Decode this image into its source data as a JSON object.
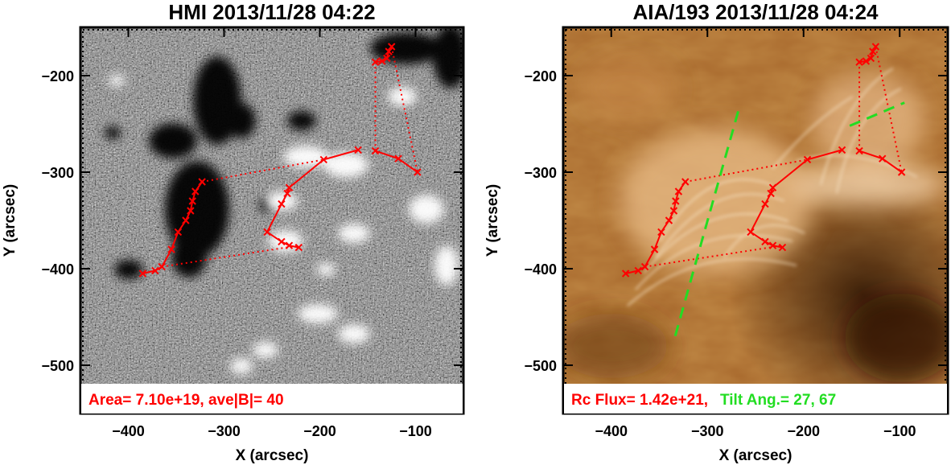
{
  "panels": [
    {
      "title": "HMI 2013/11/28 04:22",
      "caption_parts": [
        {
          "text": "Area= 7.10e+19, ave|B|=  40",
          "color": "#ff0000"
        }
      ],
      "image_style": "magnetogram-grayscale",
      "shows_green_dashed_lines": false
    },
    {
      "title": "AIA/193 2013/11/28 04:24",
      "caption_parts": [
        {
          "text": "Rc Flux= 1.42e+21,",
          "color": "#ff0000"
        },
        {
          "text": "Tilt Ang.=  27, 67",
          "color": "#22dd22"
        }
      ],
      "image_style": "euv-copper",
      "shows_green_dashed_lines": true
    }
  ],
  "axes": {
    "xlabel": "X (arcsec)",
    "ylabel": "Y (arcsec)",
    "xlim": [
      -450,
      -50
    ],
    "ylim": [
      -550,
      -150
    ],
    "xticks": [
      -400,
      -300,
      -200,
      -100
    ],
    "yticks": [
      -200,
      -300,
      -400,
      -500
    ],
    "xtick_labels": [
      "−400",
      "−300",
      "−200",
      "−100"
    ],
    "ytick_labels": [
      "−200",
      "−300",
      "−400",
      "−500"
    ]
  },
  "overlays": {
    "solid_polyline_color": "#ff0000",
    "dashed_polyline_color": "#22dd22",
    "negative_footpoint_path": [
      [
        -385,
        -405
      ],
      [
        -372,
        -402
      ],
      [
        -365,
        -398
      ],
      [
        -355,
        -380
      ],
      [
        -348,
        -362
      ],
      [
        -340,
        -350
      ],
      [
        -335,
        -340
      ],
      [
        -333,
        -330
      ],
      [
        -330,
        -320
      ],
      [
        -323,
        -310
      ]
    ],
    "positive_footpoint_path": [
      [
        -222,
        -378
      ],
      [
        -232,
        -376
      ],
      [
        -240,
        -372
      ],
      [
        -255,
        -362
      ],
      [
        -240,
        -333
      ],
      [
        -234,
        -322
      ],
      [
        -232,
        -316
      ],
      [
        -196,
        -287
      ],
      [
        -160,
        -277
      ]
    ],
    "right_footpoint_path": [
      [
        -98,
        -300
      ],
      [
        -118,
        -286
      ],
      [
        -142,
        -278
      ]
    ],
    "top_footpoint_path": [
      [
        -142,
        -186
      ],
      [
        -135,
        -185
      ],
      [
        -130,
        -182
      ],
      [
        -128,
        -175
      ],
      [
        -125,
        -170
      ]
    ],
    "dotted_links": [
      [
        [
          -323,
          -310
        ],
        [
          -196,
          -287
        ]
      ],
      [
        [
          -365,
          -398
        ],
        [
          -222,
          -376
        ]
      ],
      [
        [
          -142,
          -186
        ],
        [
          -142,
          -278
        ]
      ],
      [
        [
          -125,
          -170
        ],
        [
          -98,
          -300
        ]
      ]
    ],
    "green_dashed_lines": [
      [
        [
          -268,
          -237
        ],
        [
          -335,
          -475
        ]
      ],
      [
        [
          -152,
          -252
        ],
        [
          -95,
          -228
        ]
      ]
    ]
  }
}
